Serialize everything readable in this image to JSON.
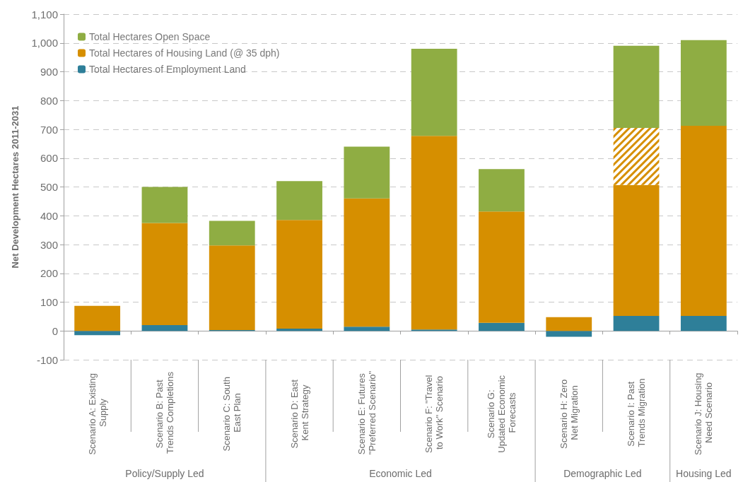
{
  "chart_data": {
    "type": "bar",
    "stacked": true,
    "ylabel": "Net Development Hectares 2011-2031",
    "categories": [
      "Scenario A: Existing Supply",
      "Scenario B: Past Trends Completions",
      "Scenario C: South East Plan",
      "Scenario D: East Kent Strategy",
      "Scenario E: Futures \"Preferred Scenario\"",
      "Scenario F: \"Travel to Work\" Scenario",
      "Scenario G: Updated Economic Forecasts",
      "Scenario H: Zero Net Migration",
      "Scenario I: Past Trends Migration",
      "Scenario J: Housing Need Scenario"
    ],
    "series": [
      {
        "name": "Total Hectares of Employment Land",
        "color": "#2e7f99",
        "values": [
          -15,
          20,
          3,
          8,
          15,
          5,
          28,
          -20,
          52,
          52
        ]
      },
      {
        "name": "Total Hectares of Housing Land (@ 35 dph)",
        "color": "#d68f00",
        "values": [
          87,
          355,
          294,
          377,
          445,
          672,
          387,
          48,
          455,
          660
        ]
      },
      {
        "color": "#d68f00",
        "values": [
          null,
          null,
          null,
          null,
          null,
          null,
          null,
          null,
          198,
          null
        ]
      },
      {
        "name": "Total Hectares Open Space",
        "color": "#8fad43",
        "values": [
          null,
          125,
          85,
          135,
          180,
          303,
          147,
          null,
          285,
          298
        ]
      }
    ],
    "annotations": [
      "Policy/Supply Led",
      "Economic Led",
      "Demographic Led",
      "Housing Led"
    ],
    "ylim": [
      -100,
      1100
    ],
    "yticks": [
      -100,
      0,
      100,
      200,
      300,
      400,
      500,
      600,
      700,
      800,
      900,
      {
        "value": 1000,
        "label": "1,000"
      },
      {
        "value": 1100,
        "label": "1,100"
      }
    ],
    "grid": "y",
    "legend": "top left"
  }
}
